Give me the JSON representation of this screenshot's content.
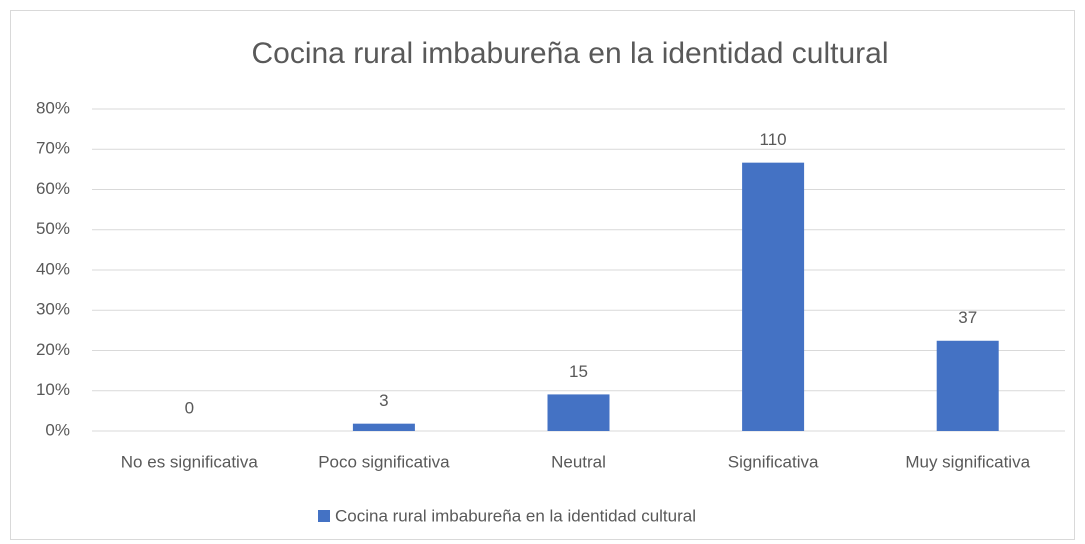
{
  "chart_data": {
    "type": "bar",
    "title": "Cocina rural imbabureña en la identidad cultural",
    "categories": [
      "No es significativa",
      "Poco significativa",
      "Neutral",
      "Significativa",
      "Muy significativa"
    ],
    "series": [
      {
        "name": "Cocina rural imbabureña en la identidad cultural",
        "color": "#4472c4",
        "values": [
          0,
          1.82,
          9.09,
          66.67,
          22.42
        ],
        "data_labels": [
          0,
          3,
          15,
          110,
          37
        ]
      }
    ],
    "ylim": [
      0,
      80
    ],
    "yticks": [
      {
        "value": 0,
        "label": "0%"
      },
      {
        "value": 10,
        "label": "10%"
      },
      {
        "value": 20,
        "label": "20%"
      },
      {
        "value": 30,
        "label": "30%"
      },
      {
        "value": 40,
        "label": "40%"
      },
      {
        "value": 50,
        "label": "50%"
      },
      {
        "value": 60,
        "label": "60%"
      },
      {
        "value": 70,
        "label": "70%"
      },
      {
        "value": 80,
        "label": "80%"
      }
    ],
    "grid": true,
    "legend": "bottom"
  }
}
